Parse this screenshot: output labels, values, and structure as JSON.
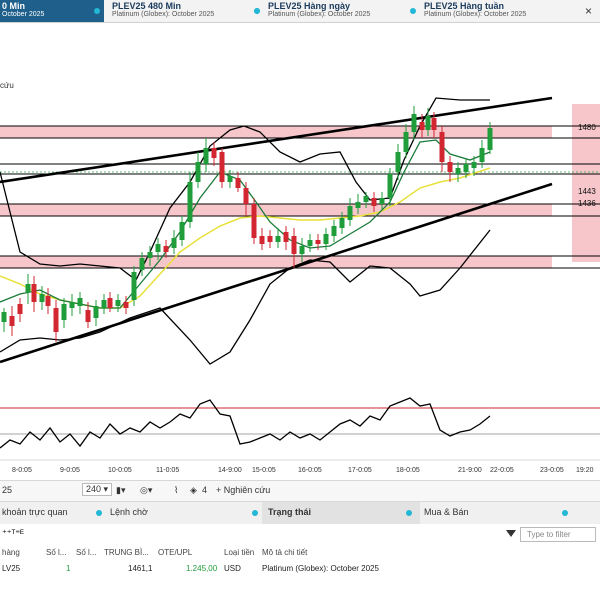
{
  "tabs": [
    {
      "title": "0 Min",
      "subtitle": "October 2025",
      "active": true
    },
    {
      "title": "PLEV25 480 Min",
      "subtitle": "Platinum (Globex): October 2025"
    },
    {
      "title": "PLEV25 Hàng ngày",
      "subtitle": "Platinum (Globex): October 2025"
    },
    {
      "title": "PLEV25 Hàng tuần",
      "subtitle": "Platinum (Globex): October 2025"
    }
  ],
  "window": {
    "close_label": "×"
  },
  "chart_data": {
    "type": "candlestick",
    "left_label": "cứu",
    "price_labels": [
      "1480",
      "1443",
      "1436"
    ],
    "x_labels": [
      "8-0:05",
      "9-0:05",
      "10-0:05",
      "11-0:05",
      "14-9:00",
      "15-0:05",
      "16-0:05",
      "17-0:05",
      "18-0:05",
      "21-9:00",
      "22-0:05",
      "23-0:05",
      "19:20"
    ],
    "colors": {
      "up": "#1f9d3a",
      "down": "#d22730",
      "zone": "#f6c6cb",
      "ma_fast": "#1b7a3a",
      "ma_slow": "#e8e13a",
      "band": "#000000"
    }
  },
  "toolbar": {
    "symbol_partial": "25",
    "interval": "240",
    "count": "4",
    "research_label": "+ Nghiên cứu"
  },
  "panel": {
    "tabs": [
      {
        "label": "khoản trực quan"
      },
      {
        "label": "Lệnh chờ"
      },
      {
        "label": "Trạng thái",
        "active": true
      },
      {
        "label": "Mua & Bán"
      }
    ],
    "filter_placeholder": "Type to filter",
    "header_first": "hàng",
    "columns": [
      "Số l...",
      "Số l...",
      "TRUNG BÌ...",
      "OTE/UPL",
      "Loại tiền",
      "Mô tả chi tiết"
    ],
    "rows": [
      {
        "symbol": "LV25",
        "qty1": "1",
        "qty2": "",
        "avg": "1461,1",
        "ote": "1.245,00",
        "currency": "USD",
        "desc": "Platinum (Globex): October 2025"
      }
    ]
  }
}
